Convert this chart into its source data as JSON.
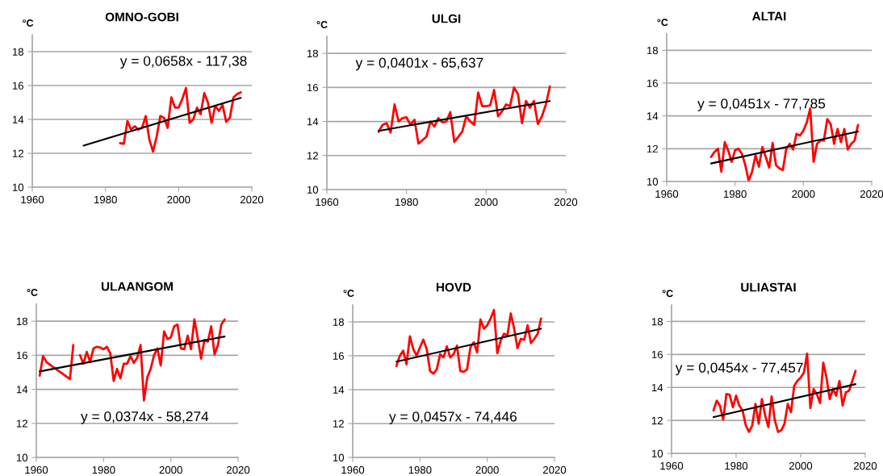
{
  "chart_data": [
    {
      "type": "line",
      "title": "OMNO-GOBI",
      "ylabel": "°C",
      "xlim": [
        1960,
        2020
      ],
      "ylim": [
        10,
        19
      ],
      "xticks": [
        1960,
        1980,
        2000,
        2020
      ],
      "yticks": [
        10,
        12,
        14,
        16,
        18
      ],
      "grid": "y",
      "legend": false,
      "marker": "none",
      "line_style": "solid",
      "annotations": [
        "y = 0,0658x - 117,38"
      ],
      "series": [
        {
          "color": "#ff0000",
          "x": [
            1984,
            1985,
            1986,
            1987,
            1988,
            1989,
            1990,
            1991,
            1992,
            1993,
            1994,
            1995,
            1996,
            1997,
            1998,
            1999,
            2000,
            2001,
            2002,
            2003,
            2004,
            2005,
            2006,
            2007,
            2008,
            2009,
            2010,
            2011,
            2012,
            2013,
            2014,
            2015,
            2016,
            2017
          ],
          "values": [
            12.6,
            12.55,
            13.9,
            13.4,
            13.6,
            13.4,
            13.5,
            14.2,
            12.8,
            12.1,
            13.0,
            14.2,
            14.1,
            13.5,
            15.3,
            14.7,
            14.7,
            15.2,
            15.85,
            13.8,
            14.0,
            14.7,
            14.3,
            15.55,
            15.0,
            13.8,
            14.8,
            14.5,
            14.85,
            13.85,
            14.1,
            15.3,
            15.5,
            15.6
          ]
        },
        {
          "color": "#000000",
          "x": [
            1974,
            2017
          ],
          "values": [
            12.45,
            15.27
          ]
        }
      ]
    },
    {
      "type": "line",
      "title": "ULGI",
      "ylabel": "°C",
      "xlim": [
        1960,
        2020
      ],
      "ylim": [
        10,
        19
      ],
      "xticks": [
        1960,
        1980,
        2000,
        2020
      ],
      "yticks": [
        10,
        12,
        14,
        16,
        18
      ],
      "grid": "y",
      "legend": false,
      "marker": "none",
      "line_style": "solid",
      "annotations": [
        "y = 0,0401x - 65,637"
      ],
      "series": [
        {
          "color": "#ff0000",
          "x": [
            1973,
            1974,
            1975,
            1976,
            1977,
            1978,
            1979,
            1980,
            1981,
            1982,
            1983,
            1984,
            1985,
            1986,
            1987,
            1988,
            1989,
            1990,
            1991,
            1992,
            1993,
            1994,
            1995,
            1996,
            1997,
            1998,
            1999,
            2000,
            2001,
            2002,
            2003,
            2004,
            2005,
            2006,
            2007,
            2008,
            2009,
            2010,
            2011,
            2012,
            2013,
            2014,
            2015,
            2016
          ],
          "values": [
            13.4,
            13.8,
            13.9,
            13.35,
            15.0,
            14.0,
            14.2,
            14.25,
            13.8,
            14.1,
            12.7,
            12.9,
            13.1,
            14.0,
            13.7,
            14.2,
            13.95,
            14.0,
            14.55,
            12.8,
            13.1,
            13.4,
            14.3,
            14.0,
            13.8,
            15.7,
            14.9,
            14.9,
            14.95,
            15.85,
            14.3,
            14.6,
            15.0,
            14.9,
            16.0,
            15.6,
            13.9,
            15.2,
            14.8,
            15.2,
            13.85,
            14.3,
            15.0,
            16.05
          ]
        },
        {
          "color": "#000000",
          "x": [
            1973,
            2016
          ],
          "values": [
            13.45,
            15.2
          ]
        }
      ]
    },
    {
      "type": "line",
      "title": "ALTAI",
      "ylabel": "°C",
      "xlim": [
        1960,
        2020
      ],
      "ylim": [
        10,
        19
      ],
      "xticks": [
        1960,
        1980,
        2000,
        2020
      ],
      "yticks": [
        10,
        12,
        14,
        16,
        18
      ],
      "grid": "y",
      "legend": false,
      "marker": "none",
      "line_style": "solid",
      "annotations": [
        "y = 0,0451x - 77,785"
      ],
      "series": [
        {
          "color": "#ff0000",
          "x": [
            1973,
            1974,
            1975,
            1976,
            1977,
            1978,
            1979,
            1980,
            1981,
            1982,
            1983,
            1984,
            1985,
            1986,
            1987,
            1988,
            1989,
            1990,
            1991,
            1992,
            1993,
            1994,
            1995,
            1996,
            1997,
            1998,
            1999,
            2000,
            2001,
            2002,
            2003,
            2004,
            2005,
            2006,
            2007,
            2008,
            2009,
            2010,
            2011,
            2012,
            2013,
            2014,
            2015,
            2016
          ],
          "values": [
            11.5,
            11.8,
            12.0,
            10.6,
            12.4,
            11.9,
            11.2,
            11.9,
            12.0,
            11.7,
            11.0,
            10.05,
            10.6,
            11.6,
            10.9,
            12.1,
            11.5,
            10.85,
            12.35,
            11.0,
            10.8,
            10.7,
            12.0,
            12.3,
            11.95,
            12.9,
            12.8,
            13.1,
            13.6,
            14.45,
            11.2,
            12.3,
            12.5,
            12.5,
            13.8,
            13.5,
            12.3,
            13.2,
            12.4,
            13.2,
            11.95,
            12.3,
            12.5,
            13.45
          ]
        },
        {
          "color": "#000000",
          "x": [
            1973,
            2016
          ],
          "values": [
            11.1,
            13.05
          ]
        }
      ]
    },
    {
      "type": "line",
      "title": "ULAANGOM",
      "ylabel": "°C",
      "xlim": [
        1960,
        2020
      ],
      "ylim": [
        10,
        19
      ],
      "xticks": [
        1960,
        1980,
        2000,
        2020
      ],
      "yticks": [
        10,
        12,
        14,
        16,
        18
      ],
      "grid": "y",
      "legend": false,
      "marker": "none",
      "line_style": "solid",
      "annotations": [
        "y = 0,0374x - 58,274"
      ],
      "series": [
        {
          "color": "#ff0000",
          "x": [
            1961,
            1962,
            1963,
            1970,
            1971,
            1972,
            1973,
            1974,
            1975,
            1976,
            1977,
            1978,
            1979,
            1980,
            1981,
            1982,
            1983,
            1984,
            1985,
            1986,
            1987,
            1988,
            1989,
            1990,
            1991,
            1992,
            1993,
            1994,
            1995,
            1996,
            1997,
            1998,
            1999,
            2000,
            2001,
            2002,
            2003,
            2004,
            2005,
            2006,
            2007,
            2008,
            2009,
            2010,
            2011,
            2012,
            2013,
            2014,
            2015,
            2016
          ],
          "values": [
            14.8,
            15.95,
            15.6,
            14.6,
            16.6,
            null,
            16.0,
            15.5,
            16.2,
            15.6,
            16.4,
            16.5,
            16.45,
            16.35,
            16.5,
            16.1,
            14.5,
            15.2,
            14.65,
            15.5,
            15.5,
            15.95,
            15.55,
            15.85,
            16.6,
            13.35,
            14.7,
            15.2,
            16.0,
            16.4,
            15.4,
            17.4,
            16.95,
            17.05,
            17.7,
            17.8,
            16.4,
            16.35,
            17.15,
            16.35,
            18.1,
            17.0,
            15.8,
            16.9,
            16.8,
            17.7,
            16.05,
            16.6,
            17.8,
            18.1
          ]
        },
        {
          "color": "#000000",
          "x": [
            1961,
            2016
          ],
          "values": [
            15.05,
            17.1
          ]
        }
      ]
    },
    {
      "type": "line",
      "title": "HOVD",
      "ylabel": "°C",
      "xlim": [
        1960,
        2020
      ],
      "ylim": [
        10,
        19
      ],
      "xticks": [
        1960,
        1980,
        2000,
        2020
      ],
      "yticks": [
        10,
        12,
        14,
        16,
        18
      ],
      "grid": "y",
      "legend": false,
      "marker": "none",
      "line_style": "solid",
      "annotations": [
        "y = 0,0457x - 74,446"
      ],
      "series": [
        {
          "color": "#ff0000",
          "x": [
            1973,
            1974,
            1975,
            1976,
            1977,
            1978,
            1979,
            1980,
            1981,
            1982,
            1983,
            1984,
            1985,
            1986,
            1987,
            1988,
            1989,
            1990,
            1991,
            1992,
            1993,
            1994,
            1995,
            1996,
            1997,
            1998,
            1999,
            2000,
            2001,
            2002,
            2003,
            2004,
            2005,
            2006,
            2007,
            2008,
            2009,
            2010,
            2011,
            2012,
            2013,
            2014,
            2015,
            2016
          ],
          "values": [
            15.4,
            16.0,
            16.3,
            15.5,
            17.15,
            16.4,
            16.0,
            16.5,
            16.95,
            16.4,
            15.1,
            14.95,
            15.2,
            16.1,
            15.9,
            16.55,
            15.9,
            16.1,
            16.6,
            15.1,
            15.05,
            15.2,
            16.5,
            16.8,
            16.2,
            18.15,
            17.6,
            17.8,
            18.2,
            18.7,
            16.15,
            16.9,
            17.3,
            17.2,
            18.5,
            17.6,
            16.45,
            17.0,
            16.95,
            17.8,
            16.75,
            17.0,
            17.3,
            18.2
          ]
        },
        {
          "color": "#000000",
          "x": [
            1973,
            2016
          ],
          "values": [
            15.65,
            17.6
          ]
        }
      ]
    },
    {
      "type": "line",
      "title": "ULIASTAI",
      "ylabel": "°C",
      "xlim": [
        1960,
        2020
      ],
      "ylim": [
        10,
        19
      ],
      "xticks": [
        1960,
        1980,
        2000,
        2020
      ],
      "yticks": [
        10,
        12,
        14,
        16,
        18
      ],
      "grid": "y",
      "legend": false,
      "marker": "none",
      "line_style": "solid",
      "annotations": [
        "y = 0,0454x - 77,457"
      ],
      "series": [
        {
          "color": "#ff0000",
          "x": [
            1973,
            1974,
            1975,
            1976,
            1977,
            1978,
            1979,
            1980,
            1981,
            1982,
            1983,
            1984,
            1985,
            1986,
            1987,
            1988,
            1989,
            1990,
            1991,
            1992,
            1993,
            1994,
            1995,
            1996,
            1997,
            1998,
            1999,
            2000,
            2001,
            2002,
            2003,
            2004,
            2005,
            2006,
            2007,
            2008,
            2009,
            2010,
            2011,
            2012,
            2013,
            2014,
            2015,
            2016,
            2017
          ],
          "values": [
            12.6,
            13.2,
            12.9,
            12.05,
            13.6,
            13.55,
            12.8,
            13.5,
            12.9,
            12.6,
            11.7,
            11.3,
            11.7,
            13.0,
            11.8,
            13.3,
            12.3,
            11.6,
            13.45,
            12.0,
            11.3,
            11.4,
            11.8,
            13.0,
            12.5,
            14.1,
            14.4,
            14.6,
            14.9,
            16.05,
            12.75,
            13.9,
            13.6,
            13.05,
            15.5,
            14.6,
            13.3,
            13.9,
            13.5,
            14.4,
            12.9,
            13.7,
            13.8,
            14.4,
            15.0
          ]
        },
        {
          "color": "#000000",
          "x": [
            1973,
            2017
          ],
          "values": [
            12.2,
            14.2
          ]
        }
      ]
    }
  ]
}
